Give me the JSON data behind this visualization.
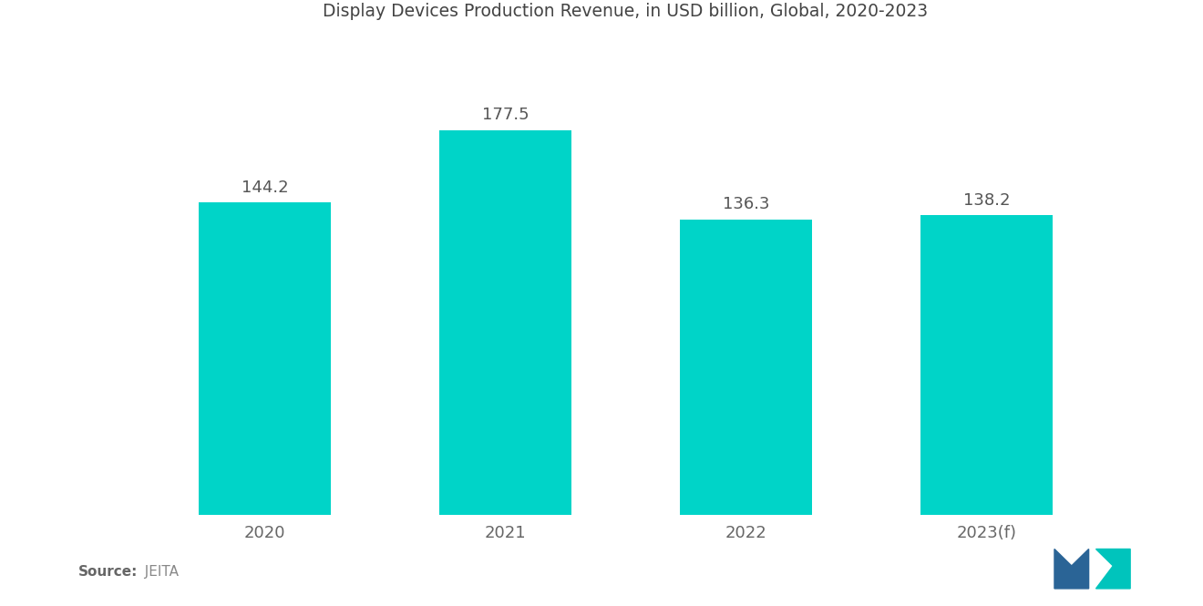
{
  "title": "Display Devices Production Revenue, in USD billion, Global, 2020-2023",
  "categories": [
    "2020",
    "2021",
    "2022",
    "2023(f)"
  ],
  "values": [
    144.2,
    177.5,
    136.3,
    138.2
  ],
  "bar_color": "#00D4C8",
  "background_color": "#FFFFFF",
  "title_fontsize": 13.5,
  "label_fontsize": 13,
  "tick_fontsize": 13,
  "source_bold": "Source:",
  "source_normal": "  JEITA",
  "ylim": [
    0,
    215
  ],
  "bar_width": 0.55,
  "logo_left_color": "#2A6496",
  "logo_right_color": "#00C4BC"
}
